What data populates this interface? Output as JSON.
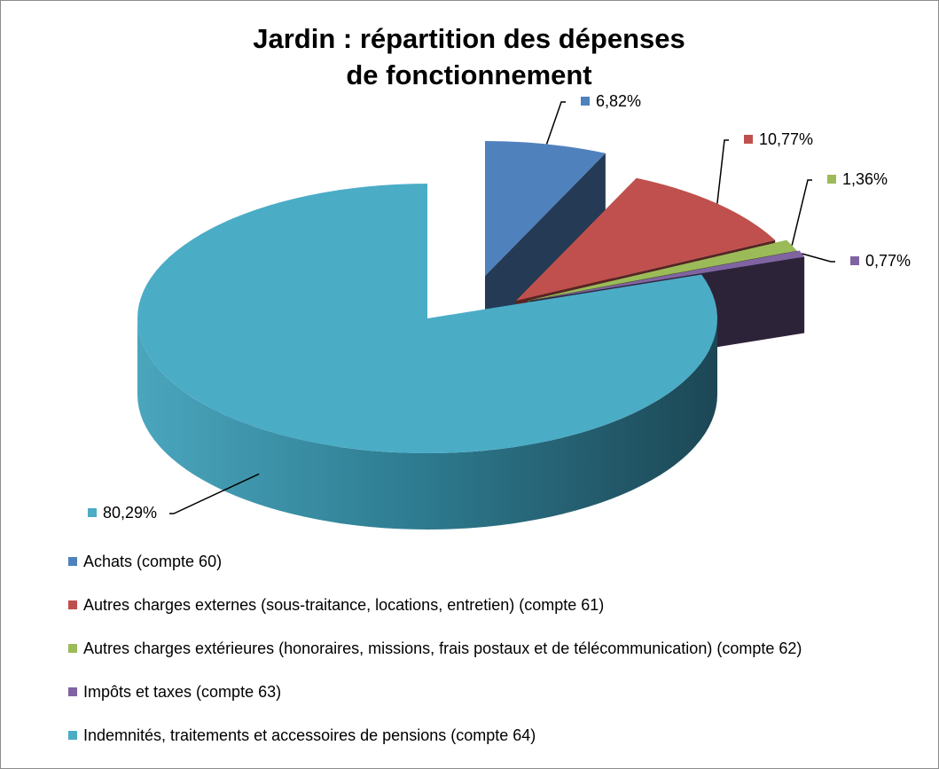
{
  "chart_data": {
    "type": "pie",
    "title_lines": [
      "Jardin : répartition des dépenses",
      "de fonctionnement"
    ],
    "slices": [
      {
        "label": "Achats (compte 60)",
        "value": 6.82,
        "data_label": "6,82%",
        "color": "#4F81BD"
      },
      {
        "label": "Autres charges externes (sous-traitance, locations, entretien) (compte 61)",
        "value": 10.77,
        "data_label": "10,77%",
        "color": "#C0504D"
      },
      {
        "label": "Autres charges extérieures (honoraires, missions, frais postaux et de télécommunication) (compte 62)",
        "value": 1.36,
        "data_label": "1,36%",
        "color": "#9BBB59"
      },
      {
        "label": "Impôts et taxes (compte 63)",
        "value": 0.77,
        "data_label": "0,77%",
        "color": "#8064A2"
      },
      {
        "label": "Indemnités, traitements et accessoires de pensions (compte 64)",
        "value": 80.29,
        "data_label": "80,29%",
        "color": "#4BACC6"
      }
    ],
    "legend_position": "bottom",
    "exploded": true,
    "three_d": true
  }
}
